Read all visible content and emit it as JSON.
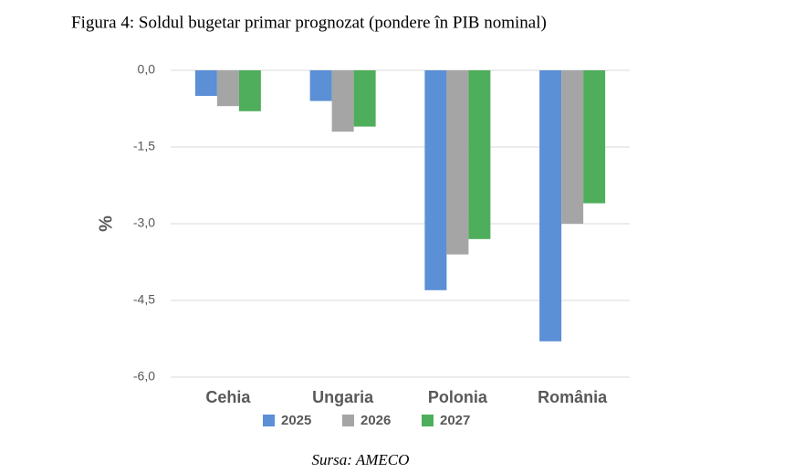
{
  "chart_data": {
    "type": "bar",
    "title": "Figura 4: Soldul bugetar primar prognozat (pondere în PIB nominal)",
    "source": "Sursa: AMECO",
    "y_label": "%",
    "categories": [
      "Cehia",
      "Ungaria",
      "Polonia",
      "România"
    ],
    "series": [
      {
        "name": "2025",
        "color": "#5b8fd6",
        "values": [
          -0.5,
          -0.6,
          -4.3,
          -5.3
        ]
      },
      {
        "name": "2026",
        "color": "#a5a5a5",
        "values": [
          -0.7,
          -1.2,
          -3.6,
          -3.0
        ]
      },
      {
        "name": "2027",
        "color": "#4eae5b",
        "values": [
          -0.8,
          -1.1,
          -3.3,
          -2.6
        ]
      }
    ],
    "ylim": [
      -6,
      0
    ],
    "yticks": [
      {
        "value": 0,
        "label": "0,0"
      },
      {
        "value": -1.5,
        "label": "-1,5"
      },
      {
        "value": -3,
        "label": "-3,0"
      },
      {
        "value": -4.5,
        "label": "-4,5"
      },
      {
        "value": -6,
        "label": "-6,0"
      }
    ],
    "grid": true,
    "legend": "bottom"
  }
}
